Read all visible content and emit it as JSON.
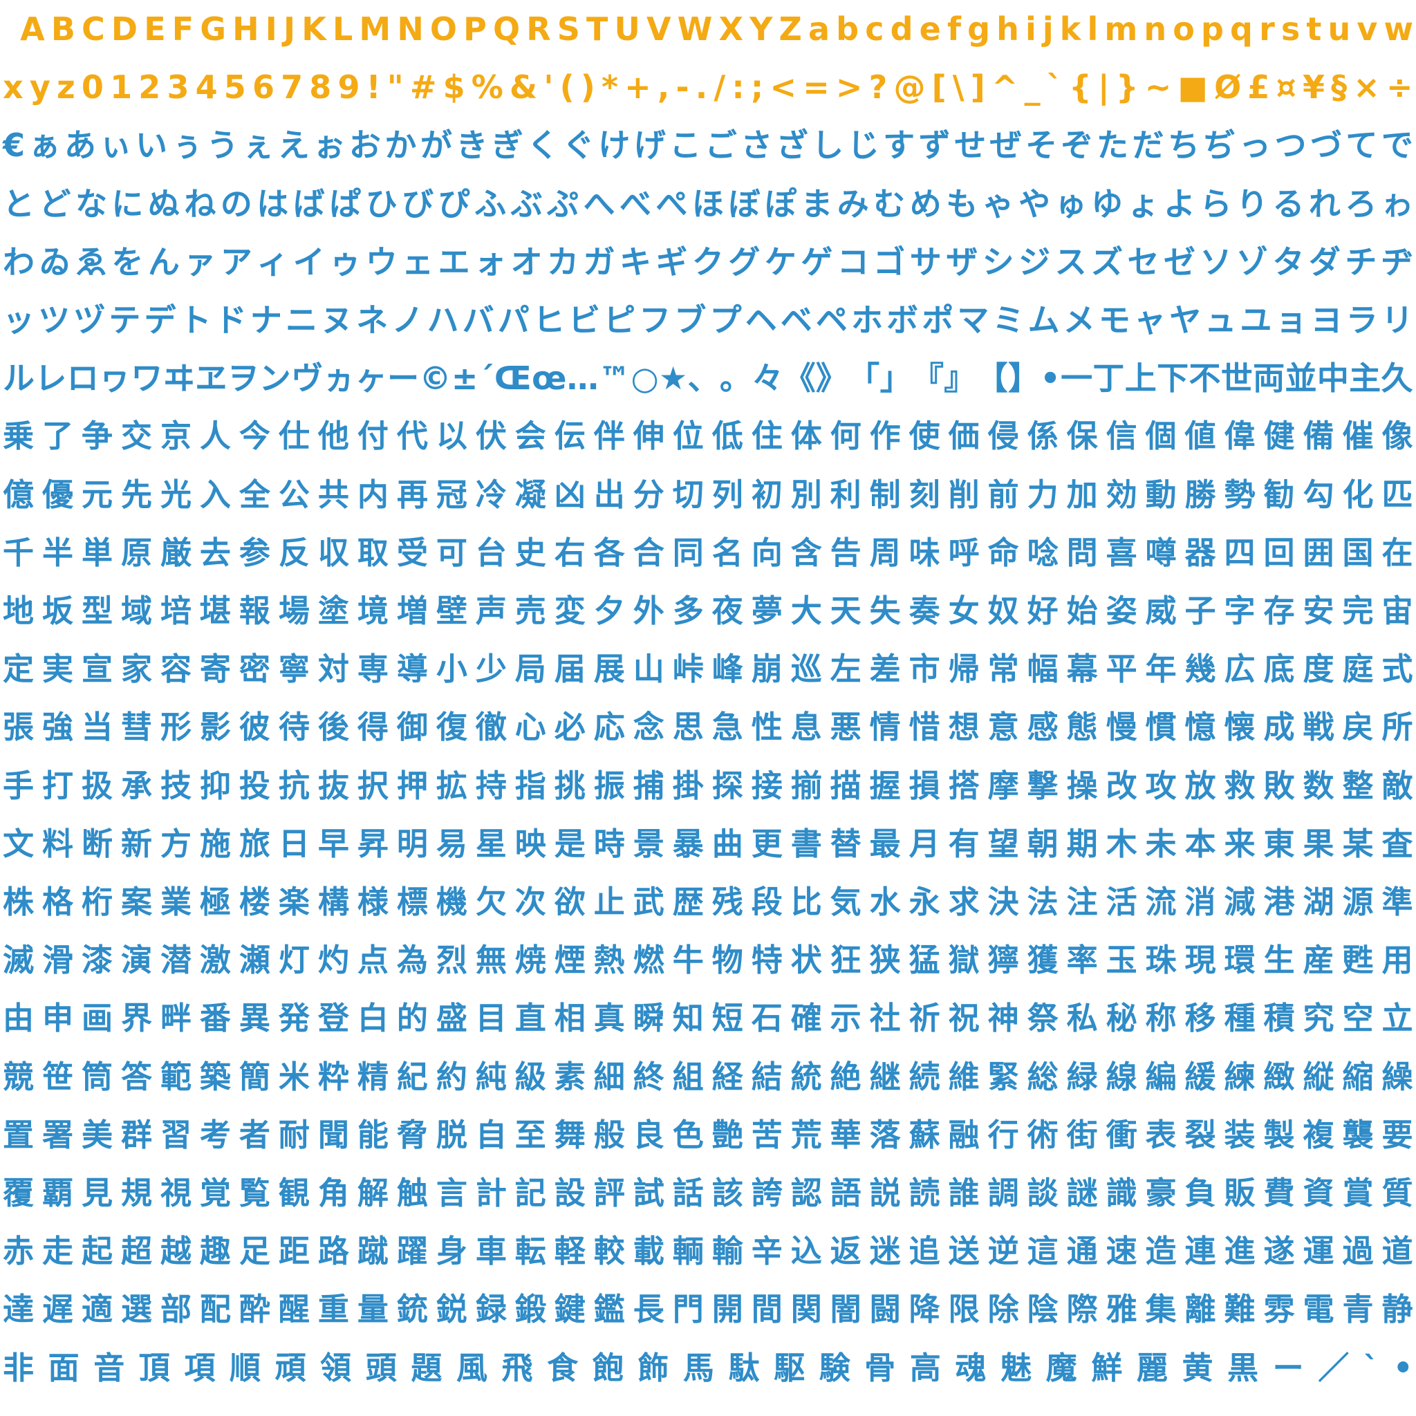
{
  "colors": {
    "latin": "#f4aa14",
    "japanese": "#2f8cc8",
    "background": "#ffffff"
  },
  "rows": [
    {
      "kind": "latin",
      "chars": " ABCDEFGHIJKLMNOPQRSTUVWXYZabcdefghijklmnopqrstuvw"
    },
    {
      "kind": "latin",
      "chars": "xyz0123456789!\"#$%&'()*+,-./:;<=>?@[\\]^_`{|}~■Ø£¤¥§×÷"
    },
    {
      "kind": "kana",
      "chars": "€ぁあぃいぅうぇえぉおかがきぎくぐけげこごさざしじすずせぜそぞただちぢっつづてで"
    },
    {
      "kind": "kana",
      "chars": "とどなにぬねのはばぱひびぴふぶぷへべぺほぼぽまみむめもゃやゅゆょよらりるれろゎ"
    },
    {
      "kind": "kana",
      "chars": "わゐゑをんァアィイゥウェエォオカガキギクグケゲコゴサザシジスズセゼソゾタダチヂ"
    },
    {
      "kind": "kana",
      "chars": "ッツヅテデトドナニヌネノハバパヒビピフブプヘベペホボポマミムメモャヤュユョヨラリ"
    },
    {
      "kind": "kana",
      "chars": "ルレロヮワヰヱヲンヴヵヶー©±´Œœ…™○★、。々《》「」『』【】•一丁上下不世両並中主久"
    },
    {
      "kind": "kanji",
      "chars": "乗了争交京人今仕他付代以伏会伝伴伸位低住体何作使価侵係保信個値偉健備催像"
    },
    {
      "kind": "kanji",
      "chars": "億優元先光入全公共内再冠冷凝凶出分切列初別利制刻削前力加効動勝勢勧勾化匹"
    },
    {
      "kind": "kanji",
      "chars": "千半単原厳去参反収取受可台史右各合同名向含告周味呼命唸問喜噂器四回囲国在"
    },
    {
      "kind": "kanji",
      "chars": "地坂型域培堪報場塗境増壁声売変夕外多夜夢大天失奏女奴好始姿威子字存安完宙"
    },
    {
      "kind": "kanji",
      "chars": "定実宣家容寄密寧対専導小少局届展山峠峰崩巡左差市帰常幅幕平年幾広底度庭式"
    },
    {
      "kind": "kanji",
      "chars": "張強当彗形影彼待後得御復徹心必応念思急性息悪情惜想意感態慢慣憶懐成戦戻所"
    },
    {
      "kind": "kanji",
      "chars": "手打扱承技抑投抗抜択押拡持指挑振捕掛探接揃描握損搭摩撃操改攻放救敗数整敵"
    },
    {
      "kind": "kanji",
      "chars": "文料断新方施旅日早昇明易星映是時景暴曲更書替最月有望朝期木未本来東果某査"
    },
    {
      "kind": "kanji",
      "chars": "株格桁案業極楼楽構様標機欠次欲止武歴残段比気水永求決法注活流消減港湖源準"
    },
    {
      "kind": "kanji",
      "chars": "滅滑漆演潜激瀬灯灼点為烈無焼煙熱燃牛物特状狂狭猛獄獰獲率玉珠現環生産甦用"
    },
    {
      "kind": "kanji",
      "chars": "由申画界畔番異発登白的盛目直相真瞬知短石確示社祈祝神祭私秘称移種積究空立"
    },
    {
      "kind": "kanji",
      "chars": "競笹筒答範築簡米粋精紀約純級素細終組経結統絶継続維緊総緑線編緩練緻縦縮繰"
    },
    {
      "kind": "kanji",
      "chars": "置署美群習考者耐聞能脅脱自至舞般良色艶苦荒華落蘇融行術街衝表裂装製複襲要"
    },
    {
      "kind": "kanji",
      "chars": "覆覇見規視覚覧観角解触言計記設評試話該誇認語説読誰調談謎識豪負販費資賞質"
    },
    {
      "kind": "kanji",
      "chars": "赤走起超越趣足距路蹴躍身車転軽較載輌輸辛込返迷追送逆這通速造連進遂運過道"
    },
    {
      "kind": "kanji",
      "chars": "達遅適選部配酔醒重量銃鋭録鍛鍵鑑長門開間関闇闘降限除陰際雅集離難雰電青静"
    },
    {
      "kind": "kanji",
      "chars": "非面音頂項順頑領頭題風飛食飽飾馬駄駆験骨高魂魅魔鮮麗黄黒ー／`•"
    }
  ]
}
